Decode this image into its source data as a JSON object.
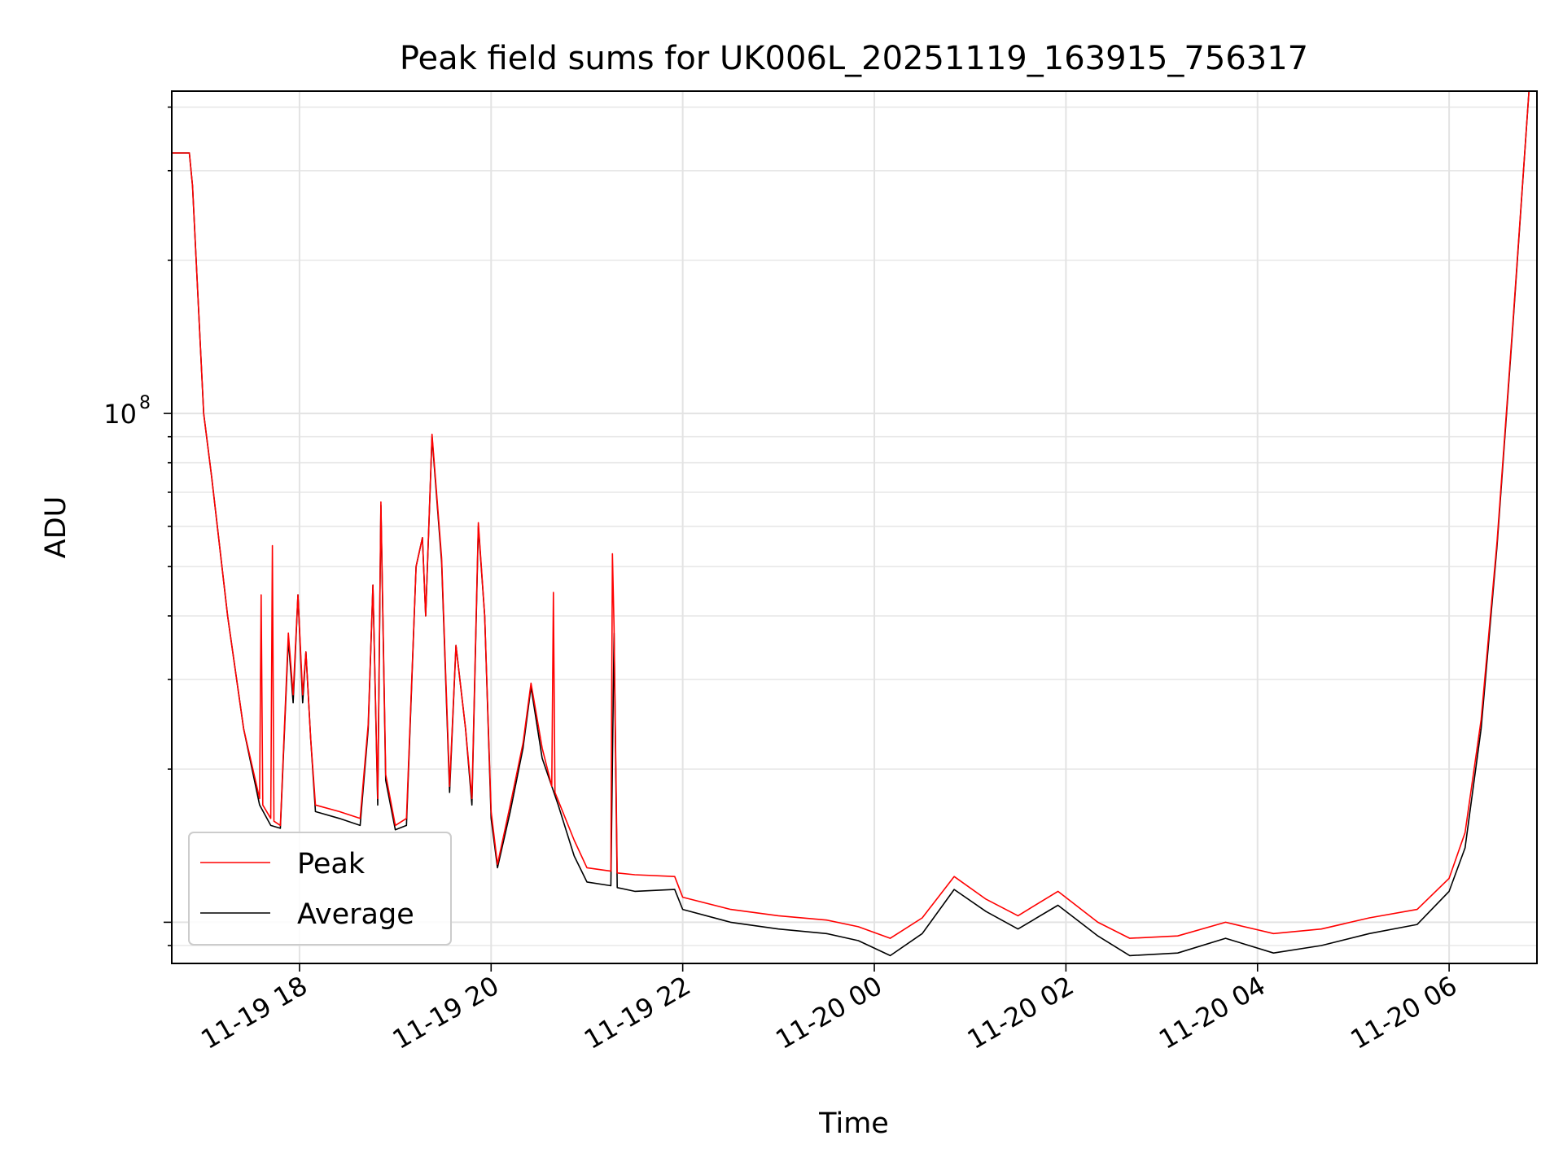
{
  "chart_data": {
    "type": "line",
    "title": "Peak field sums for UK006L_20251119_163915_756317",
    "xlabel": "Time",
    "ylabel": "ADU",
    "y_scale": "log",
    "grid": true,
    "legend_position": "lower-left",
    "xlim": [
      "2025-11-19 16:40",
      "2025-11-20 06:55"
    ],
    "ylim": [
      8300000,
      430000000
    ],
    "x_ticks": [
      "11-19 18",
      "11-19 20",
      "11-19 22",
      "11-20 00",
      "11-20 02",
      "11-20 04",
      "11-20 06"
    ],
    "x_tick_values": [
      "2025-11-19 18:00",
      "2025-11-19 20:00",
      "2025-11-19 22:00",
      "2025-11-20 00:00",
      "2025-11-20 02:00",
      "2025-11-20 04:00",
      "2025-11-20 06:00"
    ],
    "y_ticks": [
      {
        "value": 100000000,
        "base": "10",
        "exponent": "8"
      }
    ],
    "series": [
      {
        "name": "Average",
        "color": "#000000",
        "points": [
          [
            "2025-11-19 16:40",
            325000000
          ],
          [
            "2025-11-19 16:51",
            325000000
          ],
          [
            "2025-11-19 16:53",
            280000000
          ],
          [
            "2025-11-19 17:00",
            100000000
          ],
          [
            "2025-11-19 17:05",
            75000000
          ],
          [
            "2025-11-19 17:15",
            40000000
          ],
          [
            "2025-11-19 17:25",
            24000000
          ],
          [
            "2025-11-19 17:35",
            17000000
          ],
          [
            "2025-11-19 17:42",
            15500000
          ],
          [
            "2025-11-19 17:48",
            15300000
          ],
          [
            "2025-11-19 17:53",
            36000000
          ],
          [
            "2025-11-19 17:56",
            27000000
          ],
          [
            "2025-11-19 17:59",
            44000000
          ],
          [
            "2025-11-19 18:02",
            27000000
          ],
          [
            "2025-11-19 18:04",
            34000000
          ],
          [
            "2025-11-19 18:07",
            23000000
          ],
          [
            "2025-11-19 18:10",
            16500000
          ],
          [
            "2025-11-19 18:25",
            16000000
          ],
          [
            "2025-11-19 18:38",
            15500000
          ],
          [
            "2025-11-19 18:43",
            24000000
          ],
          [
            "2025-11-19 18:46",
            46000000
          ],
          [
            "2025-11-19 18:49",
            17000000
          ],
          [
            "2025-11-19 18:51",
            66000000
          ],
          [
            "2025-11-19 18:54",
            19000000
          ],
          [
            "2025-11-19 19:00",
            15200000
          ],
          [
            "2025-11-19 19:07",
            15500000
          ],
          [
            "2025-11-19 19:13",
            50000000
          ],
          [
            "2025-11-19 19:17",
            57000000
          ],
          [
            "2025-11-19 19:19",
            40000000
          ],
          [
            "2025-11-19 19:23",
            90000000
          ],
          [
            "2025-11-19 19:29",
            51000000
          ],
          [
            "2025-11-19 19:34",
            18000000
          ],
          [
            "2025-11-19 19:38",
            35000000
          ],
          [
            "2025-11-19 19:44",
            24000000
          ],
          [
            "2025-11-19 19:48",
            17000000
          ],
          [
            "2025-11-19 19:52",
            60000000
          ],
          [
            "2025-11-19 19:56",
            40000000
          ],
          [
            "2025-11-19 20:00",
            16000000
          ],
          [
            "2025-11-19 20:04",
            12800000
          ],
          [
            "2025-11-19 20:12",
            16500000
          ],
          [
            "2025-11-19 20:20",
            22000000
          ],
          [
            "2025-11-19 20:25",
            29000000
          ],
          [
            "2025-11-19 20:32",
            21000000
          ],
          [
            "2025-11-19 20:42",
            17000000
          ],
          [
            "2025-11-19 20:52",
            13500000
          ],
          [
            "2025-11-19 21:00",
            12000000
          ],
          [
            "2025-11-19 21:15",
            11800000
          ],
          [
            "2025-11-19 21:17",
            37000000
          ],
          [
            "2025-11-19 21:19",
            11700000
          ],
          [
            "2025-11-19 21:30",
            11500000
          ],
          [
            "2025-11-19 21:55",
            11600000
          ],
          [
            "2025-11-19 22:00",
            10600000
          ],
          [
            "2025-11-19 22:30",
            10000000
          ],
          [
            "2025-11-19 23:00",
            9700000
          ],
          [
            "2025-11-19 23:30",
            9500000
          ],
          [
            "2025-11-19 23:50",
            9200000
          ],
          [
            "2025-11-20 00:10",
            8600000
          ],
          [
            "2025-11-20 00:30",
            9500000
          ],
          [
            "2025-11-20 00:50",
            11600000
          ],
          [
            "2025-11-20 01:10",
            10500000
          ],
          [
            "2025-11-20 01:30",
            9700000
          ],
          [
            "2025-11-20 01:55",
            10800000
          ],
          [
            "2025-11-20 02:20",
            9400000
          ],
          [
            "2025-11-20 02:40",
            8600000
          ],
          [
            "2025-11-20 03:10",
            8700000
          ],
          [
            "2025-11-20 03:40",
            9300000
          ],
          [
            "2025-11-20 04:10",
            8700000
          ],
          [
            "2025-11-20 04:40",
            9000000
          ],
          [
            "2025-11-20 05:10",
            9500000
          ],
          [
            "2025-11-20 05:40",
            9900000
          ],
          [
            "2025-11-20 06:00",
            11500000
          ],
          [
            "2025-11-20 06:10",
            14000000
          ],
          [
            "2025-11-20 06:20",
            24000000
          ],
          [
            "2025-11-20 06:30",
            55000000
          ],
          [
            "2025-11-20 06:40",
            150000000
          ],
          [
            "2025-11-20 06:50",
            430000000
          ]
        ]
      },
      {
        "name": "Peak",
        "color": "#ff0000",
        "points": [
          [
            "2025-11-19 16:40",
            325000000
          ],
          [
            "2025-11-19 16:51",
            325000000
          ],
          [
            "2025-11-19 16:53",
            280000000
          ],
          [
            "2025-11-19 17:00",
            100000000
          ],
          [
            "2025-11-19 17:05",
            75000000
          ],
          [
            "2025-11-19 17:15",
            40000000
          ],
          [
            "2025-11-19 17:25",
            24000000
          ],
          [
            "2025-11-19 17:35",
            17500000
          ],
          [
            "2025-11-19 17:36",
            44000000
          ],
          [
            "2025-11-19 17:37",
            17000000
          ],
          [
            "2025-11-19 17:42",
            16000000
          ],
          [
            "2025-11-19 17:43",
            55000000
          ],
          [
            "2025-11-19 17:44",
            15800000
          ],
          [
            "2025-11-19 17:48",
            15500000
          ],
          [
            "2025-11-19 17:53",
            37000000
          ],
          [
            "2025-11-19 17:56",
            28000000
          ],
          [
            "2025-11-19 17:59",
            44000000
          ],
          [
            "2025-11-19 18:02",
            28000000
          ],
          [
            "2025-11-19 18:04",
            34000000
          ],
          [
            "2025-11-19 18:07",
            23000000
          ],
          [
            "2025-11-19 18:10",
            17000000
          ],
          [
            "2025-11-19 18:25",
            16500000
          ],
          [
            "2025-11-19 18:38",
            16000000
          ],
          [
            "2025-11-19 18:43",
            24500000
          ],
          [
            "2025-11-19 18:46",
            46000000
          ],
          [
            "2025-11-19 18:49",
            17500000
          ],
          [
            "2025-11-19 18:51",
            67000000
          ],
          [
            "2025-11-19 18:54",
            19500000
          ],
          [
            "2025-11-19 19:00",
            15500000
          ],
          [
            "2025-11-19 19:07",
            16000000
          ],
          [
            "2025-11-19 19:13",
            50000000
          ],
          [
            "2025-11-19 19:17",
            57000000
          ],
          [
            "2025-11-19 19:19",
            40000000
          ],
          [
            "2025-11-19 19:23",
            91000000
          ],
          [
            "2025-11-19 19:29",
            52000000
          ],
          [
            "2025-11-19 19:34",
            18500000
          ],
          [
            "2025-11-19 19:38",
            35000000
          ],
          [
            "2025-11-19 19:44",
            24000000
          ],
          [
            "2025-11-19 19:48",
            17500000
          ],
          [
            "2025-11-19 19:52",
            61000000
          ],
          [
            "2025-11-19 19:56",
            40000000
          ],
          [
            "2025-11-19 20:00",
            16500000
          ],
          [
            "2025-11-19 20:04",
            13000000
          ],
          [
            "2025-11-19 20:12",
            17000000
          ],
          [
            "2025-11-19 20:20",
            22500000
          ],
          [
            "2025-11-19 20:25",
            29500000
          ],
          [
            "2025-11-19 20:32",
            22000000
          ],
          [
            "2025-11-19 20:38",
            18500000
          ],
          [
            "2025-11-19 20:39",
            44500000
          ],
          [
            "2025-11-19 20:40",
            18000000
          ],
          [
            "2025-11-19 20:52",
            14500000
          ],
          [
            "2025-11-19 21:00",
            12800000
          ],
          [
            "2025-11-19 21:15",
            12600000
          ],
          [
            "2025-11-19 21:16",
            53000000
          ],
          [
            "2025-11-19 21:17",
            38000000
          ],
          [
            "2025-11-19 21:19",
            12500000
          ],
          [
            "2025-11-19 21:30",
            12400000
          ],
          [
            "2025-11-19 21:55",
            12300000
          ],
          [
            "2025-11-19 22:00",
            11200000
          ],
          [
            "2025-11-19 22:30",
            10600000
          ],
          [
            "2025-11-19 23:00",
            10300000
          ],
          [
            "2025-11-19 23:30",
            10100000
          ],
          [
            "2025-11-19 23:50",
            9800000
          ],
          [
            "2025-11-20 00:10",
            9300000
          ],
          [
            "2025-11-20 00:30",
            10200000
          ],
          [
            "2025-11-20 00:50",
            12300000
          ],
          [
            "2025-11-20 01:10",
            11100000
          ],
          [
            "2025-11-20 01:30",
            10300000
          ],
          [
            "2025-11-20 01:55",
            11500000
          ],
          [
            "2025-11-20 02:20",
            10000000
          ],
          [
            "2025-11-20 02:40",
            9300000
          ],
          [
            "2025-11-20 03:10",
            9400000
          ],
          [
            "2025-11-20 03:40",
            10000000
          ],
          [
            "2025-11-20 04:10",
            9500000
          ],
          [
            "2025-11-20 04:40",
            9700000
          ],
          [
            "2025-11-20 05:10",
            10200000
          ],
          [
            "2025-11-20 05:40",
            10600000
          ],
          [
            "2025-11-20 06:00",
            12200000
          ],
          [
            "2025-11-20 06:10",
            15000000
          ],
          [
            "2025-11-20 06:20",
            25000000
          ],
          [
            "2025-11-20 06:30",
            56000000
          ],
          [
            "2025-11-20 06:40",
            152000000
          ],
          [
            "2025-11-20 06:50",
            430000000
          ]
        ]
      }
    ],
    "legend": [
      {
        "label": "Peak",
        "color": "#ff0000"
      },
      {
        "label": "Average",
        "color": "#000000"
      }
    ]
  }
}
